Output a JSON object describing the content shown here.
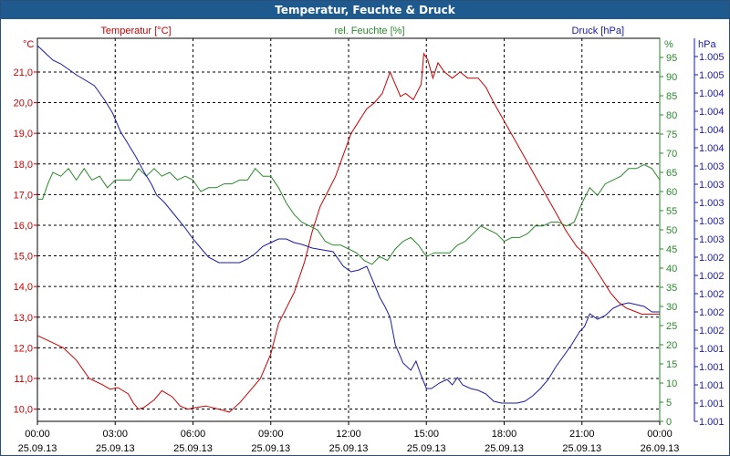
{
  "chart_data": {
    "type": "line",
    "title": "Temperatur, Feuchte & Druck",
    "x_ticks": [
      {
        "time": "00:00",
        "date": "25.09.13"
      },
      {
        "time": "03:00",
        "date": "25.09.13"
      },
      {
        "time": "06:00",
        "date": "25.09.13"
      },
      {
        "time": "09:00",
        "date": "25.09.13"
      },
      {
        "time": "12:00",
        "date": "25.09.13"
      },
      {
        "time": "15:00",
        "date": "25.09.13"
      },
      {
        "time": "18:00",
        "date": "25.09.13"
      },
      {
        "time": "21:00",
        "date": "25.09.13"
      },
      {
        "time": "00:00",
        "date": "26.09.13"
      }
    ],
    "x_range_hours": [
      0,
      24
    ],
    "axes": {
      "temperature": {
        "label": "Temperatur [°C]",
        "unit": "°C",
        "color": "#cc0000",
        "range": [
          9.6,
          22.1
        ],
        "ticks": [
          10.0,
          11.0,
          12.0,
          13.0,
          14.0,
          15.0,
          16.0,
          17.0,
          18.0,
          19.0,
          20.0,
          21.0
        ],
        "tick_labels": [
          "10,0",
          "11,0",
          "12,0",
          "13,0",
          "14,0",
          "15,0",
          "16,0",
          "17,0",
          "18,0",
          "19,0",
          "20,0",
          "21,0"
        ]
      },
      "humidity": {
        "label": "rel. Feuchte [%]",
        "unit": "%",
        "color": "#2a8a2a",
        "range": [
          0,
          100
        ],
        "ticks": [
          0,
          5,
          10,
          15,
          20,
          25,
          30,
          35,
          40,
          45,
          50,
          55,
          60,
          65,
          70,
          75,
          80,
          85,
          90,
          95
        ],
        "tick_labels": [
          "0",
          "5",
          "10",
          "15",
          "20",
          "25",
          "30",
          "35",
          "40",
          "45",
          "50",
          "55",
          "60",
          "65",
          "70",
          "75",
          "80",
          "85",
          "90",
          "95"
        ]
      },
      "pressure": {
        "label": "Druck [hPa]",
        "unit": "hPa",
        "color": "#1a1aa8",
        "range": [
          0,
          21
        ],
        "ticks": [
          0,
          1,
          2,
          3,
          4,
          5,
          6,
          7,
          8,
          9,
          10,
          11,
          12,
          13,
          14,
          15,
          16,
          17,
          18,
          19,
          20
        ],
        "tick_labels": [
          "1.001",
          "1.001",
          "1.001",
          "1.001",
          "1.001",
          "1.002",
          "1.002",
          "1.002",
          "1.002",
          "1.002",
          "1.003",
          "1.003",
          "1.003",
          "1.003",
          "1.003",
          "1.004",
          "1.004",
          "1.004",
          "1.004",
          "1.005",
          "1.005"
        ]
      }
    },
    "series": [
      {
        "name": "Temperatur [°C]",
        "axis": "temperature",
        "color": "#cc0000",
        "x": [
          0,
          0.5,
          1,
          1.5,
          2,
          2.5,
          2.8,
          3.1,
          3.5,
          3.7,
          3.9,
          4.1,
          4.5,
          4.8,
          5.2,
          5.5,
          5.8,
          6.1,
          6.5,
          7.0,
          7.4,
          7.8,
          8.2,
          8.6,
          9.0,
          9.3,
          9.6,
          9.9,
          10.3,
          10.6,
          10.9,
          11.2,
          11.5,
          11.8,
          12.1,
          12.4,
          12.7,
          13.0,
          13.3,
          13.6,
          13.9,
          14.0,
          14.2,
          14.5,
          14.8,
          14.9,
          15.05,
          15.25,
          15.45,
          15.7,
          16.0,
          16.3,
          16.6,
          17.0,
          17.3,
          17.6,
          18.0,
          18.4,
          18.8,
          19.2,
          19.6,
          20.0,
          20.4,
          20.8,
          21.2,
          21.5,
          21.8,
          22.1,
          22.4,
          22.7,
          23.0,
          23.3,
          23.6,
          24.0
        ],
        "values": [
          12.4,
          12.2,
          12.0,
          11.6,
          11.0,
          10.8,
          10.65,
          10.7,
          10.5,
          10.2,
          10.0,
          10.05,
          10.3,
          10.6,
          10.4,
          10.1,
          10.0,
          10.05,
          10.1,
          10.0,
          9.9,
          10.2,
          10.6,
          11.0,
          11.8,
          12.8,
          13.3,
          13.8,
          14.8,
          15.8,
          16.6,
          17.1,
          17.6,
          18.3,
          19.0,
          19.4,
          19.8,
          20.0,
          20.3,
          21.0,
          20.4,
          20.2,
          20.3,
          20.1,
          20.6,
          21.6,
          21.4,
          20.8,
          21.3,
          21.0,
          20.8,
          21.0,
          20.8,
          20.8,
          20.5,
          20.0,
          19.4,
          18.8,
          18.2,
          17.6,
          17.0,
          16.4,
          15.8,
          15.3,
          15.0,
          14.6,
          14.2,
          13.8,
          13.5,
          13.3,
          13.2,
          13.1,
          13.1,
          13.1
        ]
      },
      {
        "name": "rel. Feuchte [%]",
        "axis": "humidity",
        "color": "#2a8a2a",
        "x": [
          0,
          0.2,
          0.4,
          0.6,
          0.9,
          1.2,
          1.5,
          1.8,
          2.1,
          2.4,
          2.7,
          3.0,
          3.3,
          3.6,
          3.9,
          4.2,
          4.5,
          4.8,
          5.1,
          5.4,
          5.7,
          6.0,
          6.3,
          6.6,
          6.9,
          7.2,
          7.5,
          7.8,
          8.1,
          8.4,
          8.7,
          9.0,
          9.3,
          9.6,
          9.9,
          10.2,
          10.5,
          10.8,
          11.1,
          11.4,
          11.7,
          12.0,
          12.3,
          12.6,
          12.9,
          13.2,
          13.5,
          13.8,
          14.1,
          14.4,
          14.7,
          15.0,
          15.3,
          15.6,
          15.9,
          16.2,
          16.5,
          16.8,
          17.1,
          17.4,
          17.7,
          18.0,
          18.3,
          18.6,
          18.9,
          19.2,
          19.5,
          19.8,
          20.1,
          20.4,
          20.7,
          21.0,
          21.3,
          21.6,
          21.9,
          22.2,
          22.5,
          22.8,
          23.1,
          23.4,
          23.7,
          24.0
        ],
        "values": [
          58,
          58,
          62,
          65,
          64,
          66,
          63,
          66,
          63,
          64,
          61,
          63,
          63,
          63,
          66,
          64,
          66,
          64,
          65,
          63,
          64,
          63,
          60,
          61,
          61,
          62,
          62,
          63,
          63,
          66,
          64,
          64,
          61,
          57,
          54,
          52,
          51,
          50,
          47,
          46,
          46,
          45,
          44,
          42,
          41,
          43,
          42,
          45,
          47,
          48,
          46,
          43,
          44,
          44,
          44,
          46,
          47,
          49,
          51,
          50,
          49,
          47,
          48,
          48,
          49,
          51,
          51,
          52,
          52,
          51,
          52,
          57,
          61,
          59,
          62,
          63,
          64,
          66,
          66,
          67,
          66,
          63
        ]
      },
      {
        "name": "Druck [hPa]",
        "axis": "pressure",
        "color": "#1a1aa8",
        "x": [
          0,
          0.3,
          0.6,
          0.9,
          1.2,
          1.5,
          2.2,
          2.6,
          2.9,
          3.2,
          3.5,
          3.8,
          4.1,
          4.4,
          4.6,
          4.9,
          5.3,
          5.7,
          6.0,
          6.3,
          6.6,
          7.0,
          7.4,
          7.8,
          8.1,
          8.4,
          8.7,
          9.0,
          9.3,
          9.6,
          9.9,
          10.2,
          10.6,
          11.0,
          11.4,
          11.8,
          12.1,
          12.4,
          12.7,
          13.0,
          13.2,
          13.4,
          13.6,
          13.8,
          14.1,
          14.4,
          14.6,
          14.8,
          15.0,
          15.2,
          15.5,
          15.8,
          16.0,
          16.2,
          16.4,
          16.7,
          17.0,
          17.3,
          17.6,
          17.9,
          18.2,
          18.5,
          18.8,
          19.1,
          19.4,
          19.7,
          20.0,
          20.3,
          20.6,
          20.9,
          21.1,
          21.3,
          21.6,
          21.9,
          22.2,
          22.5,
          22.8,
          23.1,
          23.4,
          23.7,
          24.0
        ],
        "values": [
          20.6,
          20.2,
          19.8,
          19.6,
          19.3,
          19.0,
          18.4,
          17.6,
          16.9,
          15.9,
          15.2,
          14.5,
          13.7,
          13.0,
          12.4,
          12.0,
          11.3,
          10.6,
          10.0,
          9.5,
          9.0,
          8.7,
          8.7,
          8.7,
          8.9,
          9.2,
          9.6,
          9.8,
          10.0,
          10.0,
          9.8,
          9.7,
          9.5,
          9.4,
          9.3,
          8.5,
          8.2,
          8.3,
          8.5,
          7.5,
          6.8,
          6.3,
          5.7,
          4.2,
          3.2,
          2.8,
          3.3,
          2.5,
          1.8,
          1.8,
          2.1,
          2.3,
          2.0,
          2.4,
          2.0,
          1.8,
          1.7,
          1.5,
          1.1,
          1.0,
          1.0,
          1.0,
          1.1,
          1.4,
          1.8,
          2.3,
          3.0,
          3.6,
          4.2,
          4.9,
          5.2,
          5.9,
          5.6,
          5.8,
          6.2,
          6.4,
          6.5,
          6.4,
          6.3,
          6.0,
          6.0
        ]
      }
    ]
  }
}
